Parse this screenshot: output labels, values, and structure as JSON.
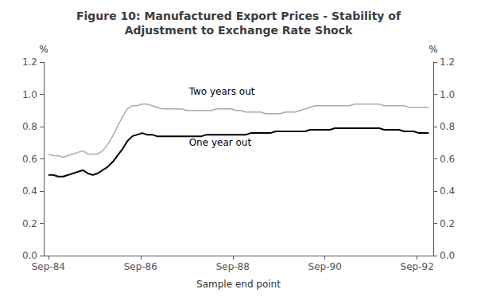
{
  "chart_data": {
    "type": "line",
    "title": "Figure 10: Manufactured Export Prices - Stability of\nAdjustment to Exchange Rate Shock",
    "xlabel": "Sample end point",
    "ylabel": "%",
    "y2label": "%",
    "x": [
      1984.75,
      1984.857143,
      1984.964286,
      1985.071429,
      1985.178571,
      1985.285714,
      1985.392857,
      1985.5,
      1985.607143,
      1985.714286,
      1985.821429,
      1985.928571,
      1986.035714,
      1986.142857,
      1986.25,
      1986.357143,
      1986.464286,
      1986.571429,
      1986.678571,
      1986.785714,
      1986.892857,
      1987.0,
      1987.107143,
      1987.214286,
      1987.321429,
      1987.428571,
      1987.535714,
      1987.642857,
      1987.75,
      1987.857143,
      1987.964286,
      1988.071429,
      1988.178571,
      1988.285714,
      1988.392857,
      1988.5,
      1988.607143,
      1988.714286,
      1988.821429,
      1988.928571,
      1989.035714,
      1989.142857,
      1989.25,
      1989.357143,
      1989.464286,
      1989.571429,
      1989.678571,
      1989.785714,
      1989.892857,
      1990.0,
      1990.107143,
      1990.214286,
      1990.321429,
      1990.428571,
      1990.535714,
      1990.642857,
      1990.75,
      1990.857143,
      1990.964286,
      1991.071429,
      1991.178571,
      1991.285714,
      1991.392857,
      1991.5,
      1991.607143,
      1991.714286,
      1991.821429,
      1991.928571,
      1992.035714,
      1992.142857,
      1992.25,
      1992.357143,
      1992.464286,
      1992.571429,
      1992.678571,
      1992.785714,
      1992.892857,
      1993.0
    ],
    "series": [
      {
        "name": "Two years out",
        "color": "#aaaaaa",
        "values": [
          0.63,
          0.62,
          0.62,
          0.61,
          0.62,
          0.63,
          0.64,
          0.65,
          0.63,
          0.63,
          0.63,
          0.65,
          0.69,
          0.74,
          0.8,
          0.86,
          0.91,
          0.93,
          0.93,
          0.94,
          0.94,
          0.93,
          0.92,
          0.91,
          0.91,
          0.91,
          0.91,
          0.91,
          0.9,
          0.9,
          0.9,
          0.9,
          0.9,
          0.9,
          0.91,
          0.91,
          0.91,
          0.91,
          0.9,
          0.9,
          0.89,
          0.89,
          0.89,
          0.89,
          0.88,
          0.88,
          0.88,
          0.88,
          0.89,
          0.89,
          0.89,
          0.9,
          0.91,
          0.92,
          0.93,
          0.93,
          0.93,
          0.93,
          0.93,
          0.93,
          0.93,
          0.93,
          0.94,
          0.94,
          0.94,
          0.94,
          0.94,
          0.94,
          0.93,
          0.93,
          0.93,
          0.93,
          0.93,
          0.92,
          0.92,
          0.92,
          0.92,
          0.92
        ]
      },
      {
        "name": "One year out",
        "color": "#000000",
        "values": [
          0.5,
          0.5,
          0.49,
          0.49,
          0.5,
          0.51,
          0.52,
          0.53,
          0.51,
          0.5,
          0.51,
          0.53,
          0.55,
          0.58,
          0.62,
          0.66,
          0.71,
          0.74,
          0.75,
          0.76,
          0.75,
          0.75,
          0.74,
          0.74,
          0.74,
          0.74,
          0.74,
          0.74,
          0.74,
          0.74,
          0.74,
          0.74,
          0.75,
          0.75,
          0.75,
          0.75,
          0.75,
          0.75,
          0.75,
          0.75,
          0.75,
          0.76,
          0.76,
          0.76,
          0.76,
          0.76,
          0.77,
          0.77,
          0.77,
          0.77,
          0.77,
          0.77,
          0.77,
          0.78,
          0.78,
          0.78,
          0.78,
          0.78,
          0.79,
          0.79,
          0.79,
          0.79,
          0.79,
          0.79,
          0.79,
          0.79,
          0.79,
          0.79,
          0.78,
          0.78,
          0.78,
          0.78,
          0.77,
          0.77,
          0.77,
          0.76,
          0.76,
          0.76
        ]
      }
    ],
    "xlim": [
      1984.65,
      1993.1
    ],
    "xticks": [
      {
        "value": 1984.75,
        "label": "Sep-84"
      },
      {
        "value": 1986.75,
        "label": "Sep-86"
      },
      {
        "value": 1988.75,
        "label": "Sep-88"
      },
      {
        "value": 1990.75,
        "label": "Sep-90"
      },
      {
        "value": 1992.75,
        "label": "Sep-92"
      }
    ],
    "ylim": [
      0.0,
      1.2
    ],
    "yticks": [
      {
        "value": 0,
        "label": "0.0"
      },
      0.2,
      0.4,
      0.6,
      0.8,
      {
        "value": 1,
        "label": "1.0"
      },
      1.2
    ],
    "y2lim": [
      0.0,
      1.2
    ],
    "y2ticks": [
      {
        "value": 0,
        "label": "0.0"
      },
      0.2,
      0.4,
      0.6,
      0.8,
      {
        "value": 1,
        "label": "1.0"
      },
      1.2
    ],
    "annotations": [
      {
        "text": "Two years out",
        "x": 1987.8,
        "y": 0.99
      },
      {
        "text": "One year out",
        "x": 1987.8,
        "y": 0.67
      }
    ],
    "grid": false
  }
}
